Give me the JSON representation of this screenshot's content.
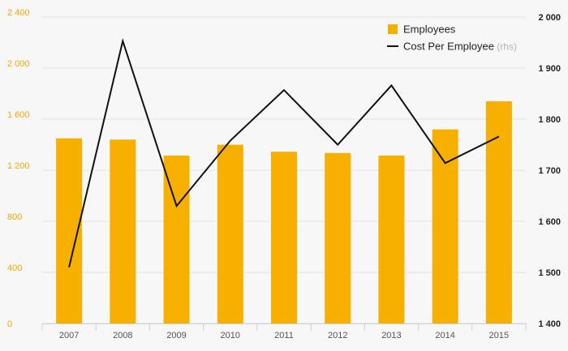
{
  "chart_data": {
    "type": "bar",
    "categories": [
      "2007",
      "2008",
      "2009",
      "2010",
      "2011",
      "2012",
      "2013",
      "2014",
      "2015"
    ],
    "series": [
      {
        "name": "Employees",
        "type": "bar",
        "axis": "left",
        "color": "#f8b000",
        "values": [
          1450,
          1440,
          1315,
          1400,
          1345,
          1335,
          1315,
          1520,
          1740
        ]
      },
      {
        "name": "Cost Per Employee",
        "type": "line",
        "axis": "right",
        "color": "#111111",
        "values": [
          1510,
          1953,
          1630,
          1758,
          1857,
          1750,
          1866,
          1714,
          1766
        ]
      }
    ],
    "y_left": {
      "lim": [
        0,
        2400
      ],
      "ticks": [
        0,
        400,
        800,
        1200,
        1600,
        2000,
        2400
      ],
      "tick_labels": [
        "0",
        "400",
        "800",
        "1 200",
        "1 600",
        "2 000",
        "2 400"
      ],
      "color": "#f5a800"
    },
    "y_right": {
      "lim": [
        1400,
        2000
      ],
      "ticks": [
        1400,
        1500,
        1600,
        1700,
        1800,
        1900,
        2000
      ],
      "tick_labels": [
        "1 400",
        "1 500",
        "1 600",
        "1 700",
        "1 800",
        "1 900",
        "2 000"
      ],
      "color": "#222222"
    },
    "legend": {
      "position": "top-right",
      "items": [
        {
          "label": "Employees",
          "suffix": "",
          "marker": "square",
          "color": "#f8b000"
        },
        {
          "label": "Cost Per Employee",
          "suffix": "(rhs)",
          "marker": "line",
          "color": "#111111"
        }
      ]
    },
    "grid": true
  }
}
